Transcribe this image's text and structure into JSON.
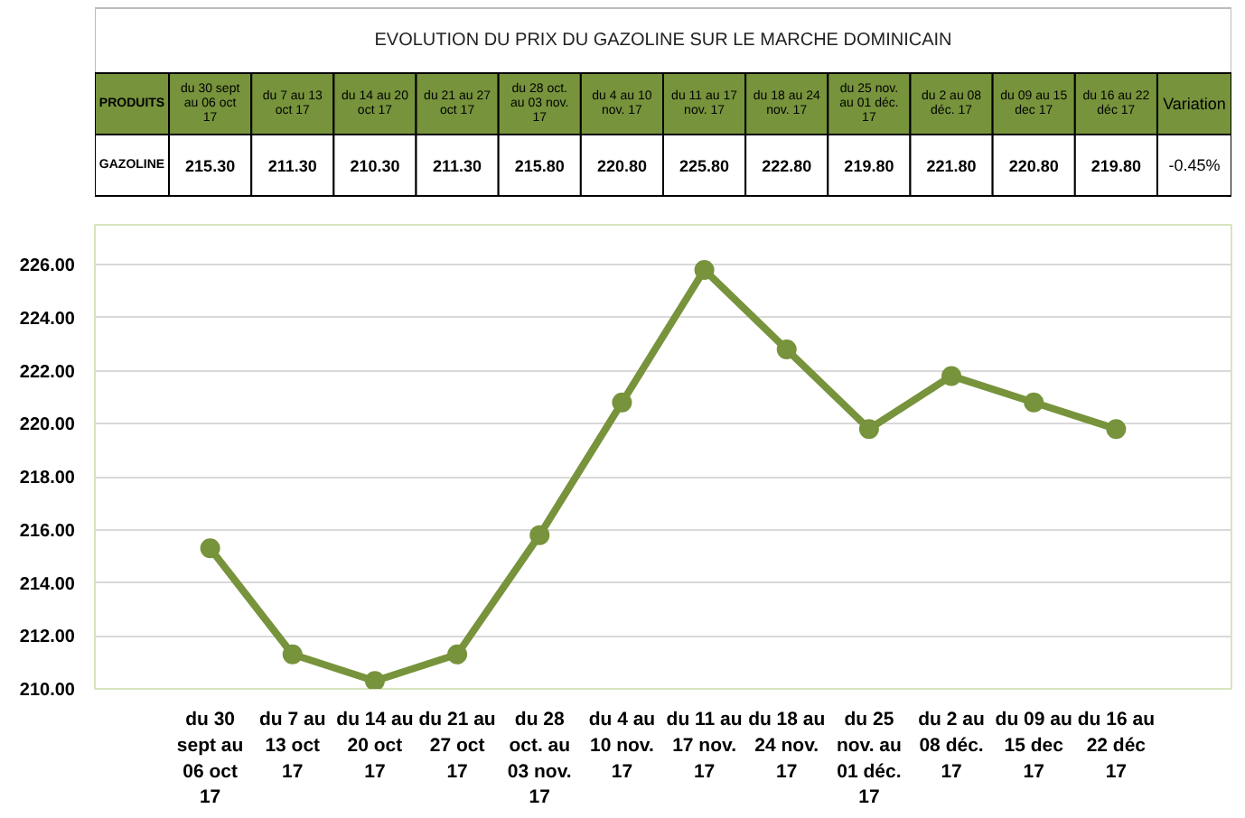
{
  "chart_data": {
    "type": "line",
    "title": "EVOLUTION DU PRIX DU GAZOLINE SUR LE MARCHE DOMINICAIN",
    "categories": [
      "du 30 sept au 06 oct 17",
      "du 7 au 13 oct 17",
      "du 14 au 20 oct 17",
      "du 21 au 27 oct 17",
      "du 28 oct. au 03 nov. 17",
      "du 4 au 10 nov. 17",
      "du 11 au 17 nov. 17",
      "du 18 au 24 nov. 17",
      "du 25 nov. au 01 déc. 17",
      "du 2 au 08 déc. 17",
      "du 09 au 15 dec 17",
      "du 16 au 22 déc 17"
    ],
    "series": [
      {
        "name": "GAZOLINE",
        "color": "#77933c",
        "values": [
          215.3,
          211.3,
          210.3,
          211.3,
          215.8,
          220.8,
          225.8,
          222.8,
          219.8,
          221.8,
          220.8,
          219.8
        ],
        "value_labels": [
          "215.30",
          "211.30",
          "210.30",
          "211.30",
          "215.80",
          "220.80",
          "225.80",
          "222.80",
          "219.80",
          "221.80",
          "220.80",
          "219.80"
        ]
      }
    ],
    "ylim": [
      210,
      227.5
    ],
    "yticks": [
      {
        "value": 210,
        "label": "210.00"
      },
      {
        "value": 212,
        "label": "212.00"
      },
      {
        "value": 214,
        "label": "214.00"
      },
      {
        "value": 216,
        "label": "216.00"
      },
      {
        "value": 218,
        "label": "218.00"
      },
      {
        "value": 220,
        "label": "220.00"
      },
      {
        "value": 222,
        "label": "222.00"
      },
      {
        "value": 224,
        "label": "224.00"
      },
      {
        "value": 226,
        "label": "226.00"
      }
    ],
    "grid": "y",
    "marker": "circle",
    "line_style": "solid",
    "legend": false,
    "annotations": [
      "PRODUITS",
      "Variation",
      "-0.45%"
    ]
  }
}
